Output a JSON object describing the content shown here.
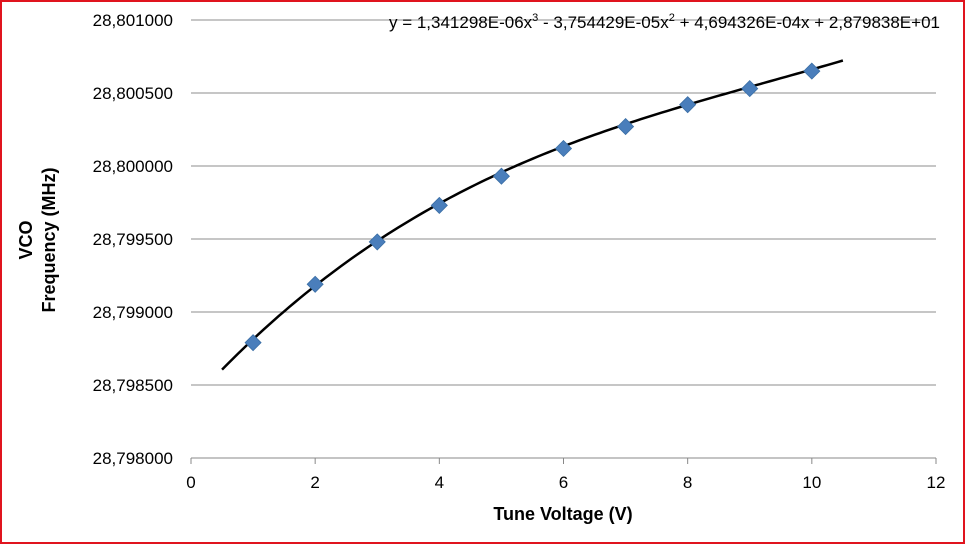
{
  "chart_data": {
    "type": "scatter",
    "xlabel": "Tune Voltage (V)",
    "ylabel": [
      "VCO",
      "Frequency (MHz)"
    ],
    "xlim": [
      0,
      12
    ],
    "ylim": [
      28.798,
      28.801
    ],
    "x_ticks": [
      "0",
      "2",
      "4",
      "6",
      "8",
      "10",
      "12"
    ],
    "y_ticks": [
      "28,798000",
      "28,798500",
      "28,799000",
      "28,799500",
      "28,800000",
      "28,800500",
      "28,801000"
    ],
    "grid": "horizontal",
    "legend": "none",
    "marker": "diamond",
    "marker_color": "#4a7ebb",
    "trendline_color": "#000000",
    "x": [
      1,
      2,
      3,
      4,
      5,
      6,
      7,
      8,
      9,
      10
    ],
    "y": [
      28.79879,
      28.79919,
      28.79948,
      28.79973,
      28.79993,
      28.80012,
      28.80027,
      28.80042,
      28.80053,
      28.80065
    ],
    "trendline": {
      "type": "polynomial",
      "order": 3,
      "coefficients": [
        28.79838,
        0.0004694326,
        -3.754429e-05,
        1.341298e-06
      ],
      "x_range": [
        0.5,
        10.5
      ],
      "equation_parts": [
        "y = 1,341298E-06x",
        "3",
        " - 3,754429E-05x",
        "2",
        " + 4,694326E-04x + 2,879838E+01"
      ]
    }
  }
}
